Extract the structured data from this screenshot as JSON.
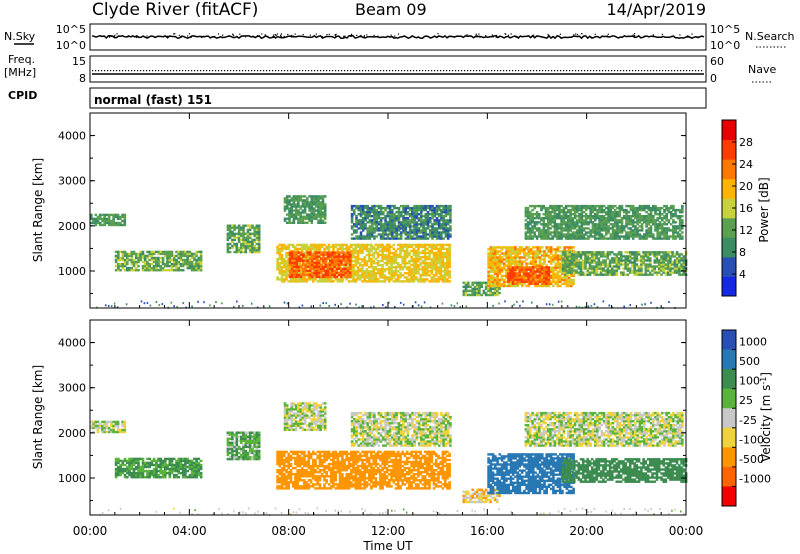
{
  "header": {
    "station": "Clyde River (fitACF)",
    "beam": "Beam 09",
    "date": "14/Apr/2019"
  },
  "left_labels": {
    "nsky": "N.Sky",
    "nsky_top": "10^5",
    "nsky_bottom": "10^0",
    "freq_line1": "Freq.",
    "freq_line2": "[MHz]",
    "freq_top": "15",
    "freq_bottom": "8",
    "cpid": "CPID"
  },
  "right_labels": {
    "nsearch_top": "10^5",
    "nsearch_bottom": "10^0",
    "nsearch": "N.Search",
    "nave_top": "60",
    "nave_bottom": "0",
    "nave": "Nave"
  },
  "cpid_text": "normal (fast) 151",
  "colors": {
    "power_scale": [
      "#1428e6",
      "#2850b4",
      "#3c8c64",
      "#5aa050",
      "#c8d23c",
      "#ffb400",
      "#ff7800",
      "#ff3c00",
      "#e60000"
    ],
    "velocity_scale": [
      "#2850b4",
      "#2878b4",
      "#3c8c50",
      "#5ab43c",
      "#c8c8c8",
      "#f0d23c",
      "#ff9600",
      "#ff6400",
      "#f00000"
    ]
  },
  "chart_data": [
    {
      "type": "heatmap",
      "panel": "power",
      "ylabel": "Slant Range [km]",
      "yticks": [
        "1000",
        "2000",
        "3000",
        "4000"
      ],
      "ylim": [
        180,
        4500
      ],
      "xlim": [
        0,
        24
      ],
      "colorbar": {
        "label": "Power [dB]",
        "ticks": [
          "4",
          "8",
          "12",
          "16",
          "20",
          "24",
          "28"
        ],
        "range": [
          0,
          32
        ]
      },
      "regions": [
        {
          "t0": 0.0,
          "t1": 1.4,
          "r0": 2000,
          "r1": 2250,
          "v": 12
        },
        {
          "t0": 1.0,
          "t1": 4.5,
          "r0": 1000,
          "r1": 1450,
          "v": 14
        },
        {
          "t0": 5.5,
          "t1": 6.8,
          "r0": 1400,
          "r1": 2000,
          "v": 14
        },
        {
          "t0": 7.5,
          "t1": 14.5,
          "r0": 750,
          "r1": 1600,
          "v": 20
        },
        {
          "t0": 8.0,
          "t1": 10.5,
          "r0": 850,
          "r1": 1400,
          "v": 28
        },
        {
          "t0": 7.8,
          "t1": 9.5,
          "r0": 2050,
          "r1": 2650,
          "v": 12
        },
        {
          "t0": 10.5,
          "t1": 14.5,
          "r0": 1700,
          "r1": 2450,
          "v": 10
        },
        {
          "t0": 15.0,
          "t1": 16.5,
          "r0": 450,
          "r1": 750,
          "v": 14
        },
        {
          "t0": 16.0,
          "t1": 19.5,
          "r0": 650,
          "r1": 1550,
          "v": 22
        },
        {
          "t0": 16.8,
          "t1": 18.5,
          "r0": 700,
          "r1": 1100,
          "v": 28
        },
        {
          "t0": 17.5,
          "t1": 23.8,
          "r0": 1700,
          "r1": 2450,
          "v": 12
        },
        {
          "t0": 19.0,
          "t1": 24.0,
          "r0": 900,
          "r1": 1400,
          "v": 14
        }
      ]
    },
    {
      "type": "heatmap",
      "panel": "velocity",
      "ylabel": "Slant Range [km]",
      "yticks": [
        "1000",
        "2000",
        "3000",
        "4000"
      ],
      "ylim": [
        180,
        4500
      ],
      "xlim": [
        0,
        24
      ],
      "colorbar": {
        "label": "Velocity [m s^-1]",
        "ticks": [
          "1000",
          "500",
          "100",
          "25",
          "-25",
          "-100",
          "-500",
          "-1000"
        ]
      },
      "regions": [
        {
          "t0": 0.0,
          "t1": 1.4,
          "r0": 2000,
          "r1": 2250,
          "v": 0
        },
        {
          "t0": 1.0,
          "t1": 4.5,
          "r0": 1000,
          "r1": 1450,
          "v": 120
        },
        {
          "t0": 5.5,
          "t1": 6.8,
          "r0": 1400,
          "r1": 2000,
          "v": 80
        },
        {
          "t0": 7.5,
          "t1": 14.5,
          "r0": 750,
          "r1": 1600,
          "v": -300
        },
        {
          "t0": 7.8,
          "t1": 9.5,
          "r0": 2050,
          "r1": 2650,
          "v": 0
        },
        {
          "t0": 10.5,
          "t1": 14.5,
          "r0": 1700,
          "r1": 2450,
          "v": 0
        },
        {
          "t0": 15.0,
          "t1": 16.5,
          "r0": 450,
          "r1": 750,
          "v": -60
        },
        {
          "t0": 16.0,
          "t1": 19.5,
          "r0": 650,
          "r1": 1550,
          "v": 600
        },
        {
          "t0": 17.5,
          "t1": 23.8,
          "r0": 1700,
          "r1": 2450,
          "v": 0
        },
        {
          "t0": 19.0,
          "t1": 24.0,
          "r0": 900,
          "r1": 1400,
          "v": 300
        }
      ]
    }
  ],
  "xaxis": {
    "label": "Time UT",
    "ticks": [
      "00:00",
      "04:00",
      "08:00",
      "12:00",
      "16:00",
      "20:00",
      "00:00"
    ]
  }
}
